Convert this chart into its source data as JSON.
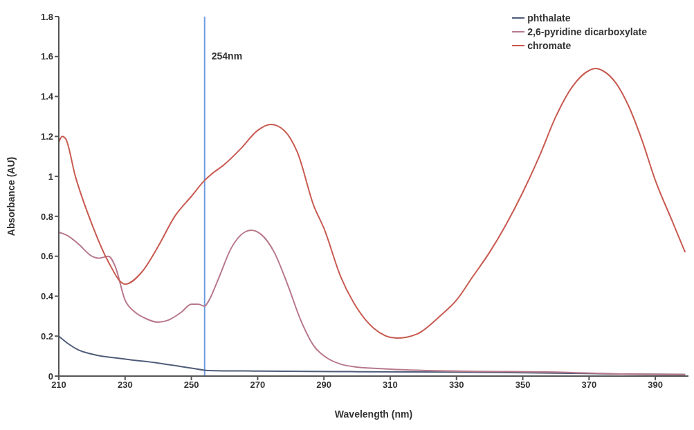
{
  "chart_data": {
    "type": "line",
    "xlabel": "Wavelength (nm)",
    "ylabel": "Absorbance (AU)",
    "xlim": [
      210,
      400
    ],
    "xticks": [
      210,
      230,
      250,
      270,
      290,
      310,
      330,
      350,
      370,
      390
    ],
    "ylim": [
      0,
      1.8
    ],
    "yticks": [
      0,
      0.2,
      0.4,
      0.6,
      0.8,
      1,
      1.2,
      1.4,
      1.6,
      1.8
    ],
    "grid": false,
    "legend": "top right",
    "marker": "none",
    "line_style": "solid",
    "series": [
      {
        "name": "phthalate",
        "color": "#4f5d7a",
        "x": [
          210,
          213,
          216,
          220,
          230,
          240,
          250,
          255,
          270,
          300,
          330,
          360,
          380,
          399
        ],
        "values": [
          0.2,
          0.16,
          0.13,
          0.11,
          0.085,
          0.065,
          0.04,
          0.028,
          0.025,
          0.022,
          0.02,
          0.015,
          0.01,
          0.008
        ]
      },
      {
        "name": "2,6-pyridine dicarboxylate",
        "color": "#b8788a",
        "x": [
          210,
          213,
          216,
          220,
          222,
          225,
          227,
          230,
          233,
          236,
          240,
          243,
          247,
          250,
          252,
          254,
          255,
          258,
          262,
          266,
          268,
          271,
          275,
          279,
          283,
          287,
          291,
          295,
          300,
          310,
          330,
          360,
          380,
          399
        ],
        "values": [
          0.72,
          0.7,
          0.66,
          0.6,
          0.59,
          0.6,
          0.55,
          0.38,
          0.32,
          0.29,
          0.27,
          0.28,
          0.32,
          0.36,
          0.36,
          0.35,
          0.37,
          0.48,
          0.64,
          0.72,
          0.73,
          0.71,
          0.62,
          0.46,
          0.28,
          0.15,
          0.09,
          0.06,
          0.045,
          0.035,
          0.025,
          0.02,
          0.01,
          0.008
        ]
      },
      {
        "name": "chromate",
        "color": "#c85a50",
        "x": [
          210,
          211,
          212,
          215,
          220,
          225,
          230,
          235,
          240,
          245,
          250,
          254,
          256,
          260,
          265,
          270,
          274,
          278,
          282,
          287,
          290,
          295,
          300,
          305,
          312,
          318,
          325,
          330,
          335,
          340,
          345,
          350,
          355,
          360,
          365,
          370,
          372,
          374,
          378,
          382,
          386,
          390,
          395,
          399
        ],
        "values": [
          1.17,
          1.2,
          1.19,
          1.0,
          0.76,
          0.57,
          0.46,
          0.52,
          0.65,
          0.8,
          0.9,
          0.98,
          1.01,
          1.06,
          1.14,
          1.23,
          1.26,
          1.23,
          1.12,
          0.85,
          0.74,
          0.5,
          0.34,
          0.24,
          0.19,
          0.21,
          0.3,
          0.38,
          0.5,
          0.62,
          0.76,
          0.92,
          1.1,
          1.3,
          1.45,
          1.53,
          1.54,
          1.53,
          1.47,
          1.35,
          1.18,
          0.98,
          0.78,
          0.62
        ]
      }
    ],
    "ref_lines": [
      {
        "axis": "x",
        "value": 254,
        "label": "254nm",
        "color": "#6f9be0"
      }
    ]
  }
}
